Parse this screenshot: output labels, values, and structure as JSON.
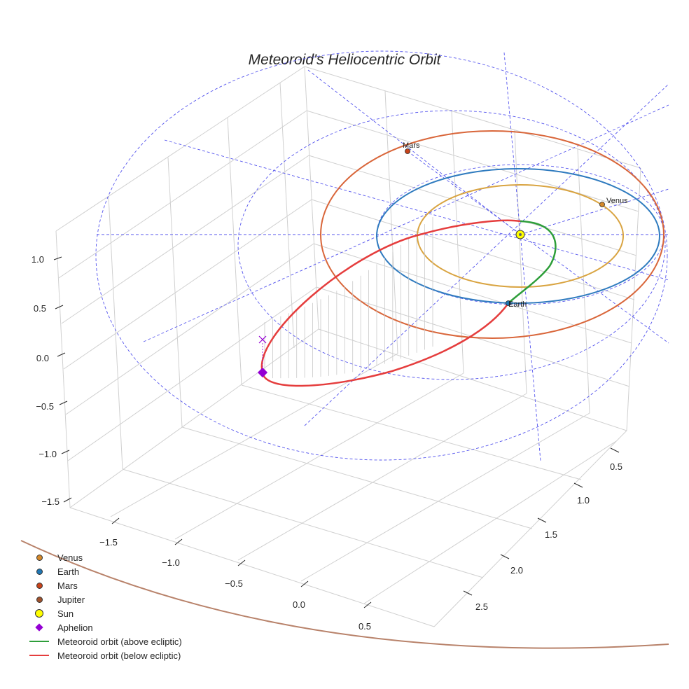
{
  "chart_data": {
    "type": "3d-line",
    "title": "Meteoroid's Heliocentric Orbit",
    "xlabel": "",
    "ylabel": "",
    "zlabel": "",
    "x_ticks": [
      "−1.5",
      "−1.0",
      "−0.5",
      "0.0",
      "0.5"
    ],
    "y_ticks": [
      "0.5",
      "1.0",
      "1.5",
      "2.0",
      "2.5"
    ],
    "z_ticks": [
      "1.0",
      "0.5",
      "0.0",
      "−0.5",
      "−1.0",
      "−1.5"
    ],
    "planets": [
      {
        "name": "Venus",
        "semi_major_axis_au": 0.72,
        "color": "#d9a441"
      },
      {
        "name": "Earth",
        "semi_major_axis_au": 1.0,
        "color": "#2f7bbf"
      },
      {
        "name": "Mars",
        "semi_major_axis_au": 1.52,
        "color": "#d9663a"
      },
      {
        "name": "Jupiter",
        "semi_major_axis_au": 5.2,
        "color": "#b57a5a"
      }
    ],
    "planet_labels": [
      "Mars",
      "Venus",
      "Earth"
    ],
    "sun_label": "Sun",
    "aphelion_label": "Aphelion",
    "series": [
      {
        "name": "Meteoroid orbit (above ecliptic)",
        "color": "#2e9e3a"
      },
      {
        "name": "Meteoroid orbit (below ecliptic)",
        "color": "#e53d3d"
      }
    ]
  },
  "legend": {
    "items": [
      {
        "label": "Venus",
        "kind": "dot",
        "color": "#d4882a"
      },
      {
        "label": "Earth",
        "kind": "dot",
        "color": "#1f77b4"
      },
      {
        "label": "Mars",
        "kind": "dot",
        "color": "#c8431a"
      },
      {
        "label": "Jupiter",
        "kind": "dot",
        "color": "#a0522d"
      },
      {
        "label": "Sun",
        "kind": "sun",
        "color": "#ffff00"
      },
      {
        "label": "Aphelion",
        "kind": "diamond",
        "color": "#9400d3"
      },
      {
        "label": "Meteoroid orbit (above ecliptic)",
        "kind": "line",
        "color": "#2e9e3a"
      },
      {
        "label": "Meteoroid orbit (below ecliptic)",
        "kind": "line",
        "color": "#e53d3d"
      }
    ]
  }
}
